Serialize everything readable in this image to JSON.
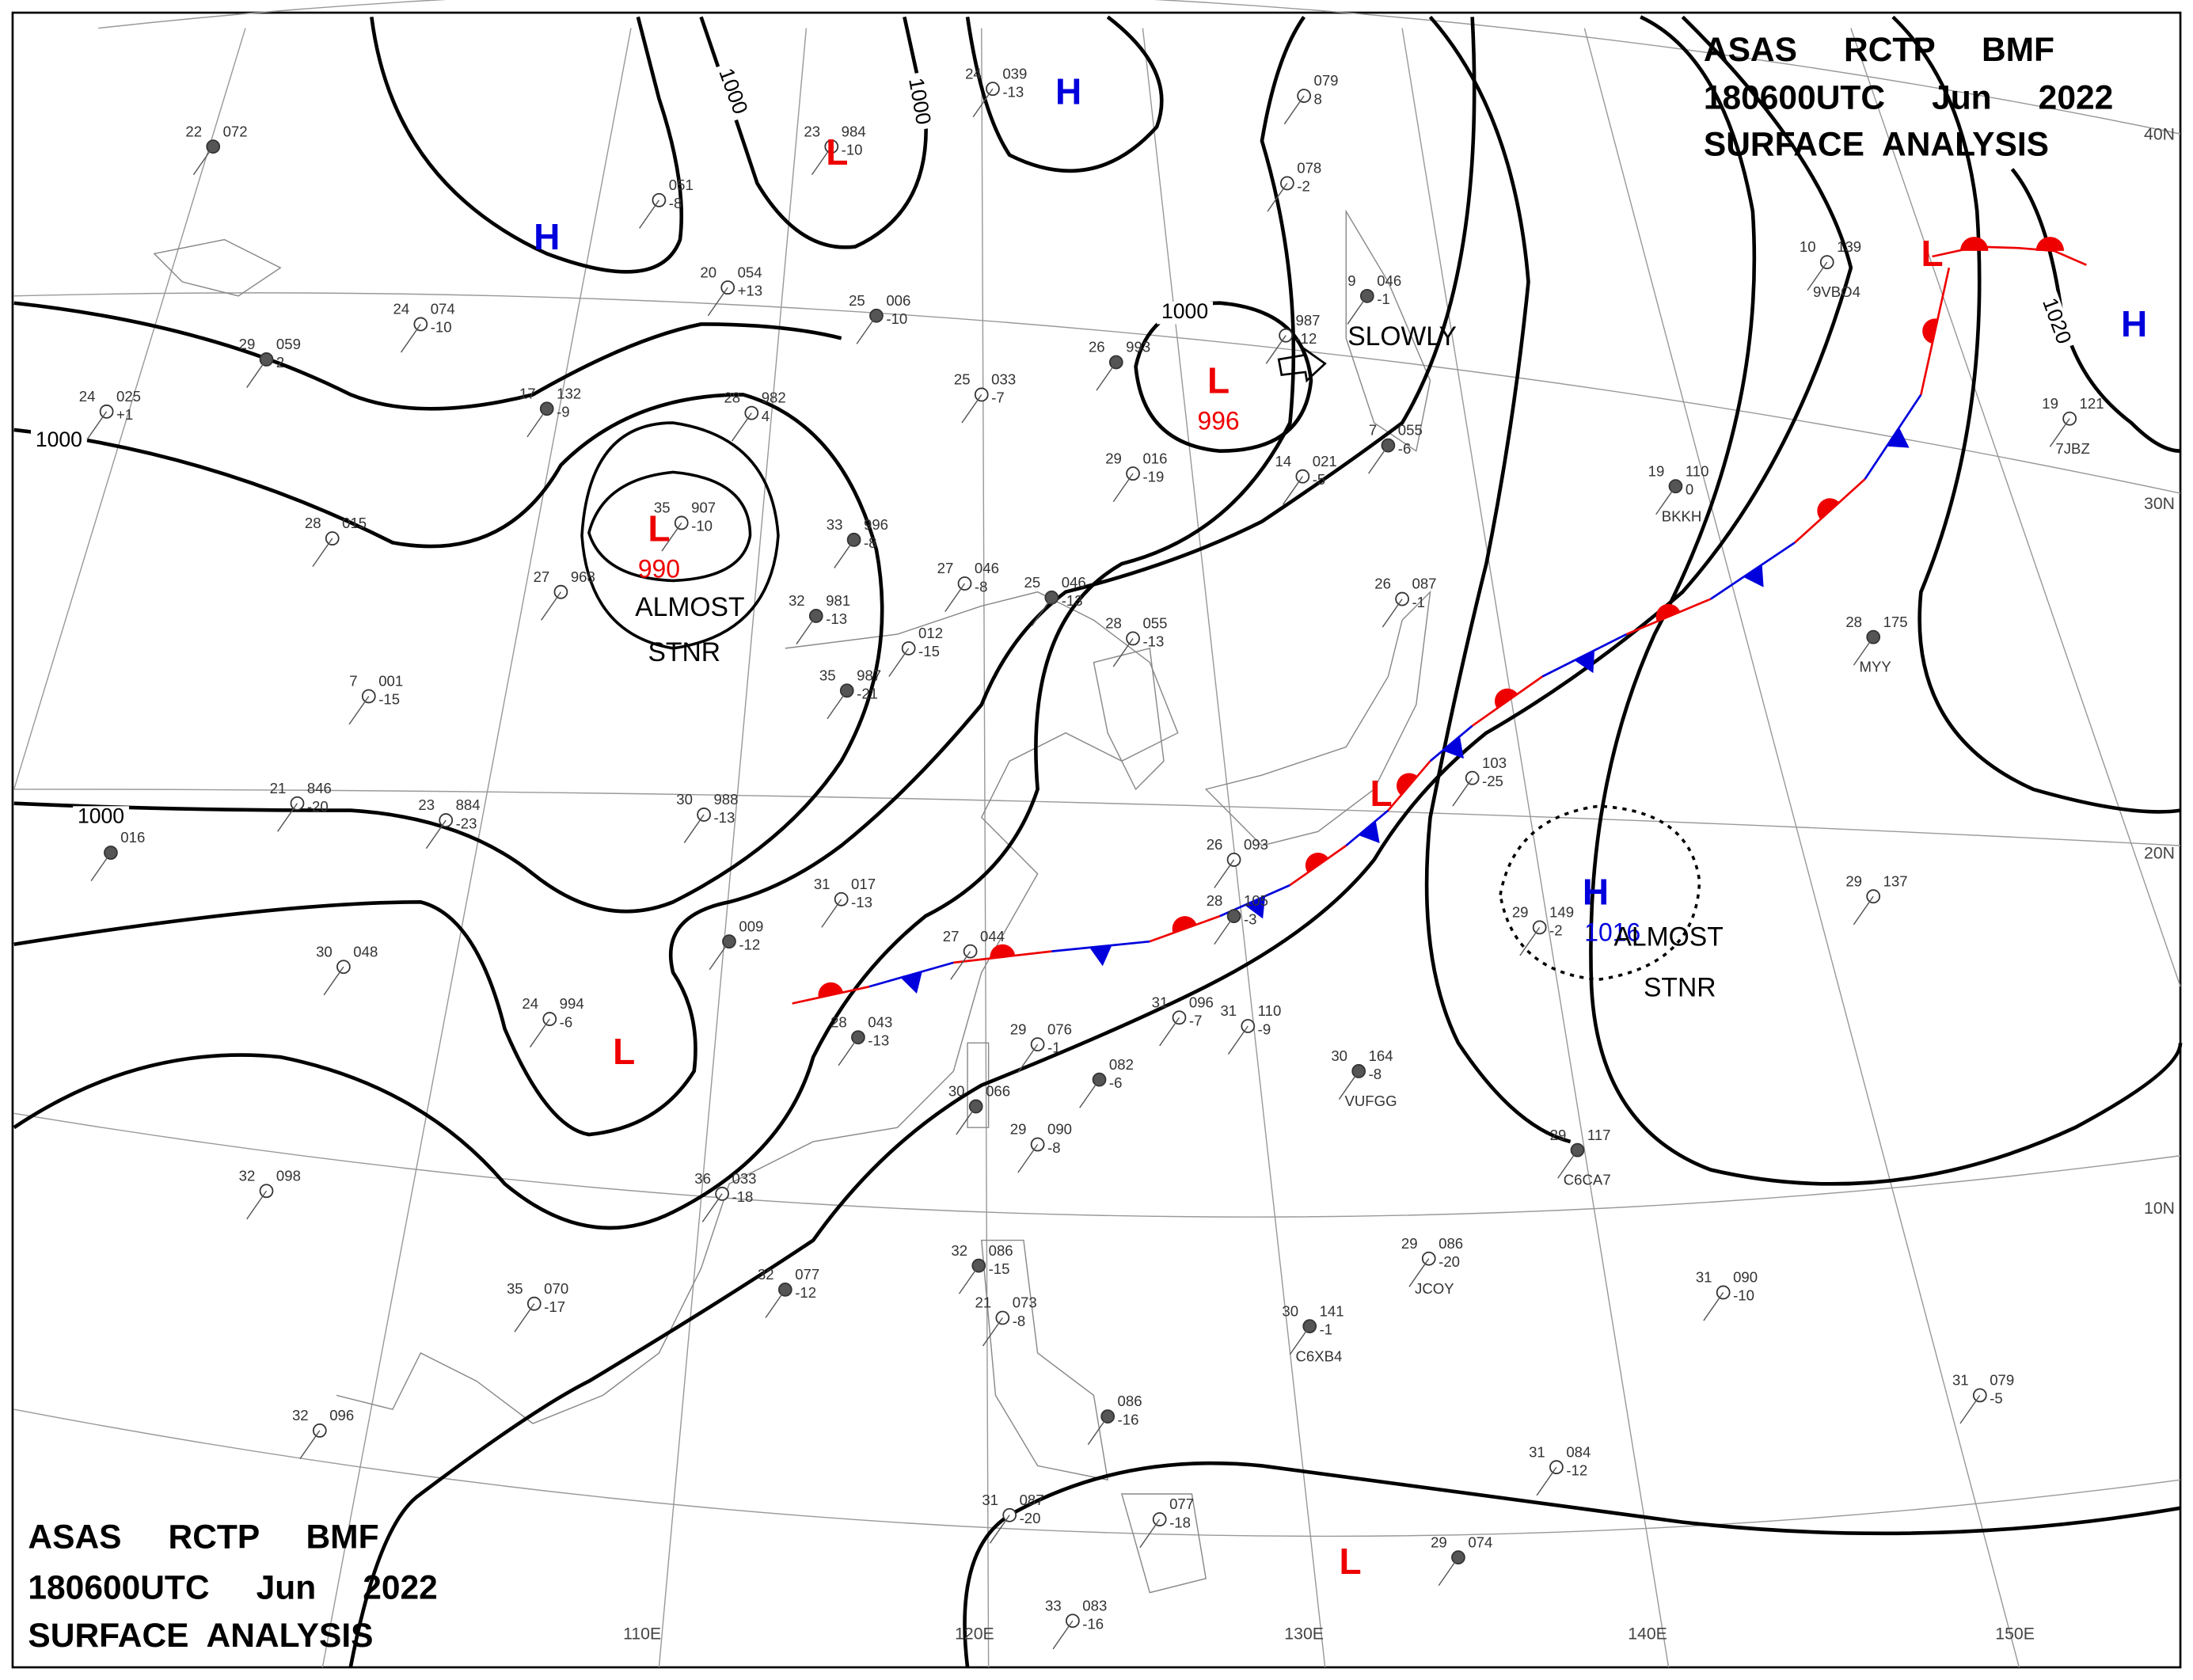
{
  "header": {
    "lines": [
      "ASAS     RCTP     BMF",
      "180600UTC     Jun     2022",
      "SURFACE  ANALYSIS"
    ]
  },
  "isobar_labels": [
    "1000",
    "1000",
    "1000",
    "1000",
    "1000",
    "1020"
  ],
  "pressure_systems": [
    {
      "type": "H"
    },
    {
      "type": "L"
    },
    {
      "type": "H"
    },
    {
      "type": "L",
      "value": "996"
    },
    {
      "type": "L",
      "value": "990"
    },
    {
      "type": "L"
    },
    {
      "type": "L"
    },
    {
      "type": "L"
    },
    {
      "type": "H"
    },
    {
      "type": "H",
      "value": "1016"
    },
    {
      "type": "L"
    }
  ],
  "annotations": [
    "SLOWLY",
    "ALMOST",
    "STNR",
    "ALMOST",
    "STNR"
  ],
  "grid_labels": {
    "lat": [
      "40N",
      "30N",
      "20N",
      "10N"
    ],
    "lon": [
      "110E",
      "120E",
      "130E",
      "140E",
      "150E"
    ]
  },
  "stations": [
    {
      "t": "22",
      "p": "072"
    },
    {
      "p": "051",
      "d": "-8"
    },
    {
      "t": "20",
      "p": "054",
      "d": "+13"
    },
    {
      "t": "25",
      "p": "006",
      "d": "-10"
    },
    {
      "t": "24",
      "p": "039",
      "d": "-13"
    },
    {
      "t": "23",
      "p": "984",
      "d": "-10"
    },
    {
      "t": "29",
      "p": "059",
      "d": "2"
    },
    {
      "t": "24",
      "p": "074",
      "d": "-10"
    },
    {
      "t": "24",
      "p": "025",
      "d": "+1"
    },
    {
      "t": "17",
      "p": "132",
      "d": "-9"
    },
    {
      "t": "28",
      "p": "982",
      "d": "4"
    },
    {
      "t": "25",
      "p": "033",
      "d": "-7"
    },
    {
      "t": "26",
      "p": "993"
    },
    {
      "p": "079",
      "d": "8"
    },
    {
      "p": "078",
      "d": "-2"
    },
    {
      "t": "9",
      "p": "046",
      "d": "-1"
    },
    {
      "p": "987",
      "d": "-12"
    },
    {
      "t": "14",
      "p": "021",
      "d": "-5"
    },
    {
      "t": "7",
      "p": "055",
      "d": "-6"
    },
    {
      "t": "29",
      "p": "016",
      "d": "-19"
    },
    {
      "t": "35",
      "p": "907",
      "d": "-10"
    },
    {
      "t": "33",
      "p": "996",
      "d": "-8"
    },
    {
      "t": "28",
      "p": "015"
    },
    {
      "t": "27",
      "p": "968"
    },
    {
      "t": "32",
      "p": "981",
      "d": "-13"
    },
    {
      "p": "012",
      "d": "-15"
    },
    {
      "t": "27",
      "p": "046",
      "d": "-8"
    },
    {
      "t": "25",
      "p": "046",
      "d": "-13"
    },
    {
      "t": "28",
      "p": "055",
      "d": "-13"
    },
    {
      "t": "7",
      "p": "001",
      "d": "-15"
    },
    {
      "t": "35",
      "p": "987",
      "d": "-21"
    },
    {
      "t": "23",
      "p": "884",
      "d": "-23"
    },
    {
      "t": "21",
      "p": "846",
      "d": "-20"
    },
    {
      "p": "016"
    },
    {
      "t": "30",
      "p": "988",
      "d": "-13"
    },
    {
      "t": "31",
      "p": "017",
      "d": "-13"
    },
    {
      "p": "009",
      "d": "-12"
    },
    {
      "t": "30",
      "p": "048"
    },
    {
      "t": "24",
      "p": "994",
      "d": "-6"
    },
    {
      "t": "28",
      "p": "043",
      "d": "-13"
    },
    {
      "t": "27",
      "p": "044"
    },
    {
      "t": "29",
      "p": "076",
      "d": "-1"
    },
    {
      "p": "082",
      "d": "-6"
    },
    {
      "t": "31",
      "p": "096",
      "d": "-7"
    },
    {
      "t": "31",
      "p": "110",
      "d": "-9"
    },
    {
      "t": "30",
      "p": "164",
      "d": "-8",
      "id": "VUFGG"
    },
    {
      "t": "26",
      "p": "087",
      "d": "-1"
    },
    {
      "p": "103",
      "d": "-25"
    },
    {
      "t": "19",
      "p": "110",
      "d": "0",
      "id": "BKKH"
    },
    {
      "t": "10",
      "p": "139",
      "id": "9VBO4"
    },
    {
      "t": "19",
      "p": "121",
      "id": "7JBZ"
    },
    {
      "t": "28",
      "p": "175",
      "id": "MYY"
    },
    {
      "t": "29",
      "p": "137"
    },
    {
      "t": "29",
      "p": "149",
      "d": "-2"
    },
    {
      "t": "29",
      "p": "117",
      "id": "C6CA7"
    },
    {
      "t": "29",
      "p": "086",
      "d": "-20",
      "id": "JCOY"
    },
    {
      "t": "31",
      "p": "090",
      "d": "-10"
    },
    {
      "t": "30",
      "p": "141",
      "d": "-1",
      "id": "C6XB4"
    },
    {
      "t": "31",
      "p": "079",
      "d": "-5"
    },
    {
      "t": "31",
      "p": "084",
      "d": "-12"
    },
    {
      "t": "29",
      "p": "074"
    },
    {
      "t": "32",
      "p": "098"
    },
    {
      "t": "35",
      "p": "070",
      "d": "-17"
    },
    {
      "t": "32",
      "p": "077",
      "d": "-12"
    },
    {
      "t": "32",
      "p": "096"
    },
    {
      "t": "36",
      "p": "033",
      "d": "-18"
    },
    {
      "t": "32",
      "p": "086",
      "d": "-15"
    },
    {
      "t": "21",
      "p": "073",
      "d": "-8"
    },
    {
      "t": "31",
      "p": "087",
      "d": "-20"
    },
    {
      "p": "086",
      "d": "-16"
    },
    {
      "p": "077",
      "d": "-18"
    },
    {
      "t": "33",
      "p": "083",
      "d": "-16"
    },
    {
      "t": "30",
      "p": "066"
    },
    {
      "t": "29",
      "p": "090",
      "d": "-8"
    },
    {
      "t": "26",
      "p": "093"
    },
    {
      "t": "28",
      "p": "105",
      "d": "-3"
    }
  ]
}
